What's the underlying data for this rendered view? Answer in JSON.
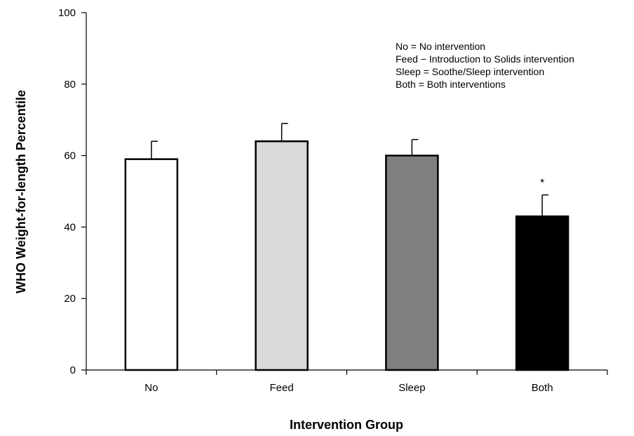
{
  "chart_data": {
    "type": "bar",
    "title": "",
    "xlabel": "Intervention Group",
    "ylabel": "WHO Weight-for-length Percentile",
    "ylim": [
      0,
      100
    ],
    "yticks": [
      0,
      20,
      40,
      60,
      80,
      100
    ],
    "ytick_labels": [
      "0",
      "20",
      "40",
      "60",
      "80",
      "100"
    ],
    "categories": [
      "No",
      "Feed",
      "Sleep",
      "Both"
    ],
    "values": [
      59,
      64,
      60,
      43
    ],
    "error_upper": [
      64,
      69,
      64.5,
      49
    ],
    "bar_colors": [
      "#ffffff",
      "#d9d9d9",
      "#7f7f7f",
      "#000000"
    ],
    "significance": [
      "",
      "",
      "",
      "*"
    ],
    "legend": [
      "No = No intervention",
      "Feed − Introduction to Solids intervention",
      "Sleep = Soothe/Sleep intervention",
      "Both = Both interventions"
    ],
    "grid": false
  }
}
